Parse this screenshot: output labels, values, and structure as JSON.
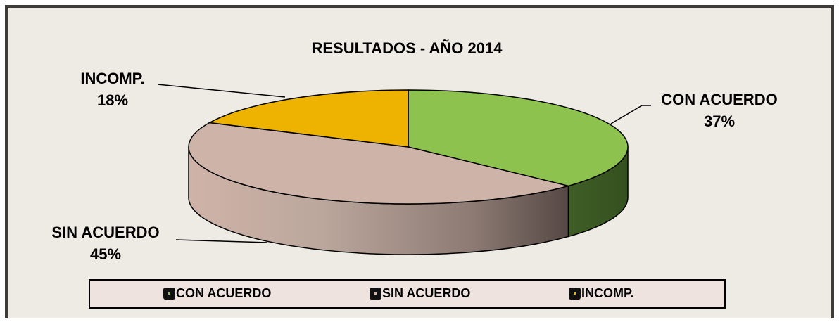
{
  "chart_data": {
    "type": "pie",
    "title": "RESULTADOS - AÑO 2014",
    "categories": [
      "CON ACUERDO",
      "SIN ACUERDO",
      "INCOMP."
    ],
    "values": [
      37,
      45,
      18
    ],
    "value_labels": [
      "37%",
      "45%",
      "18%"
    ],
    "colors": [
      "#8dc24f",
      "#ceb3a8",
      "#eeb300"
    ],
    "legend": "bottom"
  }
}
